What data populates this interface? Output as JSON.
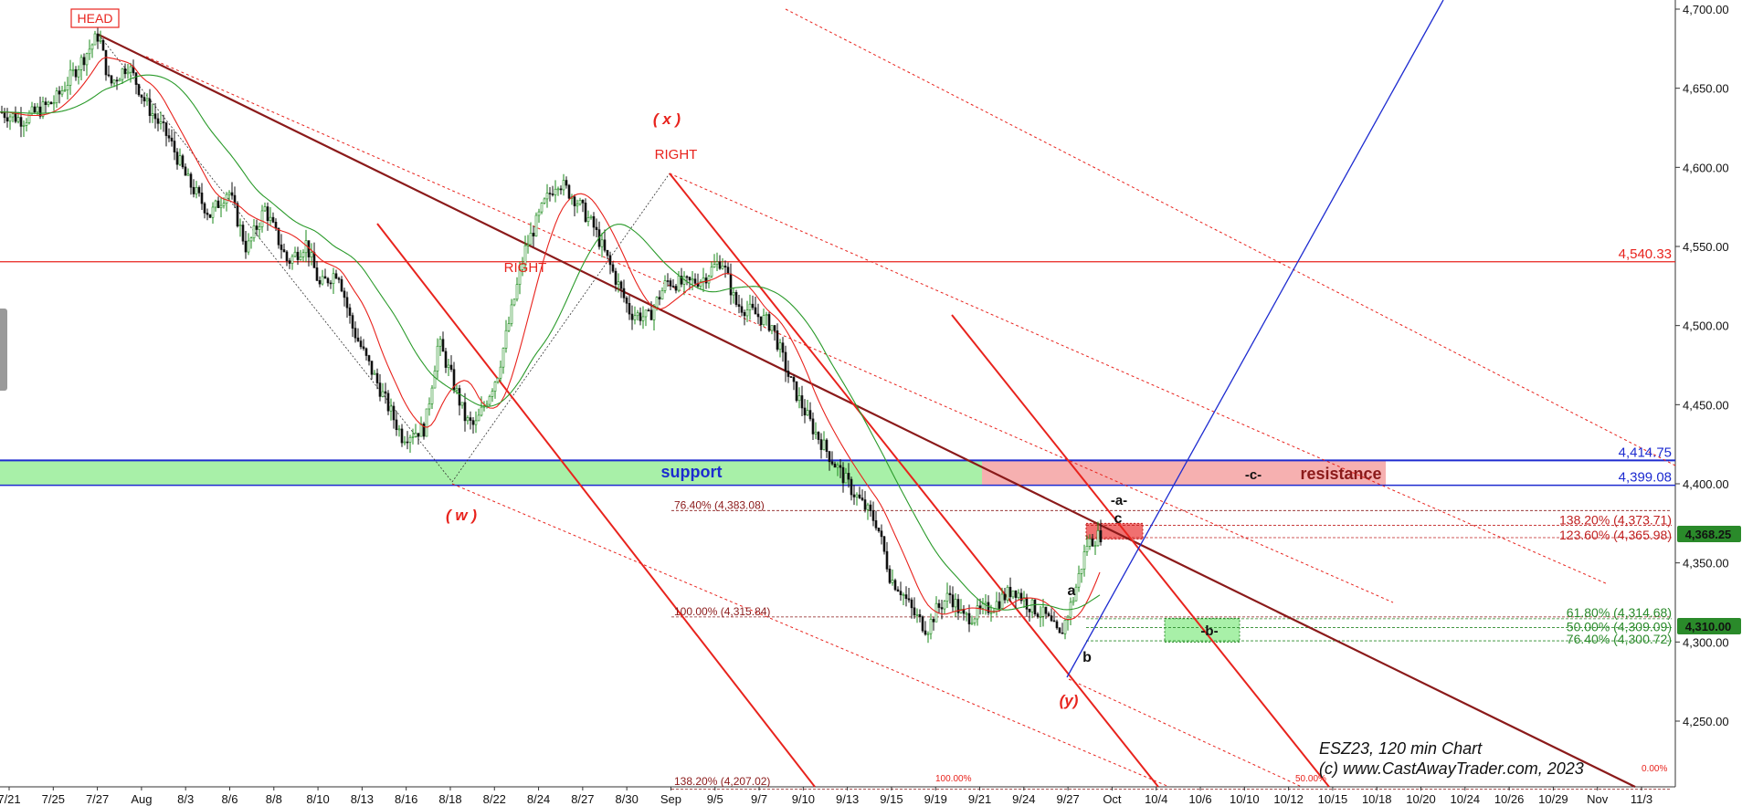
{
  "chart_data": {
    "type": "candlestick",
    "instrument": "ESZ23",
    "interval": "120 min",
    "ylim": [
      4211,
      4713
    ],
    "y_ticks": [
      "4,700.00",
      "4,650.00",
      "4,600.00",
      "4,550.00",
      "4,500.00",
      "4,450.00",
      "4,400.00",
      "4,350.00",
      "4,300.00",
      "4,250.00"
    ],
    "y_tick_values": [
      4700,
      4650,
      4600,
      4550,
      4500,
      4450,
      4400,
      4350,
      4300,
      4250
    ],
    "x_ticks": [
      "7/21",
      "7/25",
      "7/27",
      "Aug",
      "8/3",
      "8/6",
      "8/8",
      "8/10",
      "8/13",
      "8/16",
      "8/18",
      "8/22",
      "8/24",
      "8/27",
      "8/30",
      "Sep",
      "9/5",
      "9/7",
      "9/10",
      "9/13",
      "9/15",
      "9/19",
      "9/21",
      "9/24",
      "9/27",
      "Oct",
      "10/4",
      "10/6",
      "10/10",
      "10/12",
      "10/15",
      "10/18",
      "10/20",
      "10/24",
      "10/26",
      "10/29",
      "Nov",
      "11/3"
    ],
    "price_series": [
      [
        0,
        4635
      ],
      [
        25,
        4630
      ],
      [
        60,
        4642
      ],
      [
        90,
        4668
      ],
      [
        108,
        4684
      ],
      [
        120,
        4652
      ],
      [
        140,
        4665
      ],
      [
        160,
        4640
      ],
      [
        185,
        4618
      ],
      [
        205,
        4592
      ],
      [
        230,
        4570
      ],
      [
        250,
        4586
      ],
      [
        270,
        4548
      ],
      [
        290,
        4574
      ],
      [
        315,
        4540
      ],
      [
        335,
        4552
      ],
      [
        350,
        4525
      ],
      [
        370,
        4535
      ],
      [
        385,
        4500
      ],
      [
        400,
        4480
      ],
      [
        420,
        4455
      ],
      [
        440,
        4430
      ],
      [
        465,
        4435
      ],
      [
        480,
        4490
      ],
      [
        495,
        4466
      ],
      [
        510,
        4440
      ],
      [
        520,
        4436
      ],
      [
        545,
        4470
      ],
      [
        575,
        4548
      ],
      [
        595,
        4576
      ],
      [
        610,
        4592
      ],
      [
        630,
        4580
      ],
      [
        650,
        4562
      ],
      [
        670,
        4535
      ],
      [
        690,
        4508
      ],
      [
        710,
        4505
      ],
      [
        730,
        4528
      ],
      [
        750,
        4526
      ],
      [
        770,
        4530
      ],
      [
        790,
        4542
      ],
      [
        805,
        4514
      ],
      [
        825,
        4508
      ],
      [
        845,
        4500
      ],
      [
        865,
        4465
      ],
      [
        890,
        4435
      ],
      [
        910,
        4416
      ],
      [
        935,
        4394
      ],
      [
        960,
        4375
      ],
      [
        975,
        4340
      ],
      [
        985,
        4334
      ],
      [
        1000,
        4318
      ],
      [
        1015,
        4308
      ],
      [
        1025,
        4320
      ],
      [
        1040,
        4330
      ],
      [
        1055,
        4315
      ],
      [
        1070,
        4318
      ],
      [
        1090,
        4324
      ],
      [
        1110,
        4334
      ],
      [
        1125,
        4324
      ],
      [
        1145,
        4316
      ],
      [
        1160,
        4303
      ],
      [
        1175,
        4328
      ],
      [
        1190,
        4362
      ],
      [
        1205,
        4368
      ]
    ],
    "price_markers": [
      {
        "label": "4,540.33",
        "value": 4540.33,
        "color": "#e8231d"
      },
      {
        "label": "4,414.75",
        "value": 4414.75,
        "color": "#1d2bd0"
      },
      {
        "label": "4,399.08",
        "value": 4399.08,
        "color": "#1d2bd0"
      },
      {
        "label": "4,368.25",
        "value": 4368.25,
        "color": "#2a8a2a",
        "badge": true
      },
      {
        "label": "4,310.00",
        "value": 4310.0,
        "color": "#2a8a2a",
        "badge": true
      }
    ],
    "fib_levels": [
      {
        "label": "76.40% (4,383.08)",
        "value": 4383.08,
        "color": "#8b1a1a"
      },
      {
        "label": "100.00% (4,315.84)",
        "value": 4315.84,
        "color": "#8b1a1a"
      },
      {
        "label": "138.20% (4,207.02)",
        "value": 4207.02,
        "color": "#8b1a1a"
      },
      {
        "label": "138.20% (4,373.71)",
        "value": 4373.71,
        "color": "#c02020"
      },
      {
        "label": "123.60% (4,365.98)",
        "value": 4365.98,
        "color": "#c02020"
      },
      {
        "label": "61.80% (4,314.68)",
        "value": 4314.68,
        "color": "#2a8a2a"
      },
      {
        "label": "50.00% (4,309.09)",
        "value": 4309.09,
        "color": "#2a8a2a"
      },
      {
        "label": "76.40% (4,300.72)",
        "value": 4300.72,
        "color": "#2a8a2a"
      }
    ],
    "annotations": {
      "head": "HEAD",
      "right_1": "RIGHT",
      "right_2": "RIGHT",
      "x_wave": "( x )",
      "w_wave": "( w )",
      "y_wave": "(y)",
      "support": "support",
      "resistance": "resistance",
      "c_zone": "-c-",
      "a_zone": "-a-",
      "b_zone": "-b-",
      "a": "a",
      "b": "b",
      "c": "c",
      "pct_100": "100.00%",
      "pct_50": "50.00%",
      "pct_0": "0.00%"
    },
    "footer_title": "ESZ23, 120 min Chart",
    "footer_copyright": "(c) www.CastAwayTrader.com, 2023",
    "colors": {
      "support_zone": "#a8f0a8",
      "resistance_zone": "#f6b0b0",
      "channel_red": "#e8231d",
      "trend_brown": "#8b1a1a",
      "trend_blue": "#1d2bd0",
      "ma_green": "#2a9a2a",
      "ma_red": "#e8231d"
    }
  }
}
